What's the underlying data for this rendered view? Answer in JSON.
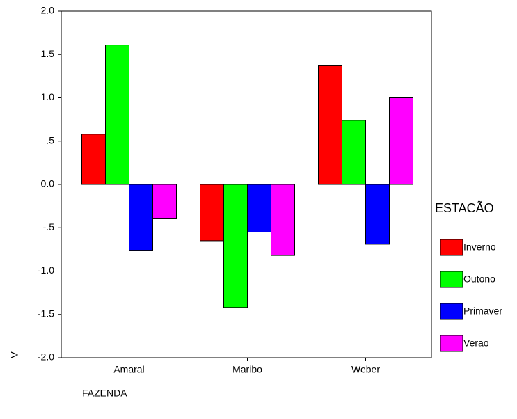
{
  "chart_data": {
    "type": "bar",
    "x_label": "FAZENDA",
    "y_label": "V",
    "legend_title": "ESTACÃO",
    "categories": [
      "Amaral",
      "Maribo",
      "Weber"
    ],
    "series": [
      {
        "name": "Inverno",
        "color": "#ff0000",
        "values": [
          0.58,
          -0.65,
          1.37
        ]
      },
      {
        "name": "Outono",
        "color": "#00ff00",
        "values": [
          1.61,
          -1.42,
          0.74
        ]
      },
      {
        "name": "Primaver",
        "color": "#0000ff",
        "values": [
          -0.76,
          -0.55,
          -0.69
        ]
      },
      {
        "name": "Verao",
        "color": "#ff00ff",
        "values": [
          -0.39,
          -0.82,
          1.0
        ]
      }
    ],
    "ylim": [
      -2,
      2
    ],
    "yticks": [
      {
        "value": 2,
        "label": "2.0"
      },
      {
        "value": 1.5,
        "label": "1.5"
      },
      {
        "value": 1,
        "label": "1.0"
      },
      {
        "value": 0.5,
        "label": ".5"
      },
      {
        "value": 0,
        "label": "0.0"
      },
      {
        "value": -0.5,
        "label": "-.5"
      },
      {
        "value": -1,
        "label": "-1.0"
      },
      {
        "value": -1.5,
        "label": "-1.5"
      },
      {
        "value": -2,
        "label": "-2.0"
      }
    ],
    "legend_position": "right"
  }
}
